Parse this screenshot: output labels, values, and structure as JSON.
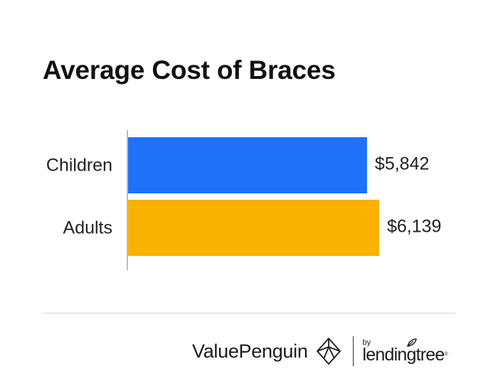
{
  "chart_data": {
    "type": "bar",
    "orientation": "horizontal",
    "title": "Average Cost of Braces",
    "categories": [
      "Children",
      "Adults"
    ],
    "values": [
      5842,
      6139
    ],
    "value_labels": [
      "$5,842",
      "$6,139"
    ],
    "colors": [
      "#2170f8",
      "#fab200"
    ],
    "xlim": [
      0,
      6139
    ],
    "xlabel": "",
    "ylabel": "",
    "grid": false,
    "legend": "none"
  },
  "footer": {
    "brand": "ValuePenguin",
    "by": "by",
    "partner": "lendingtree",
    "registered": "®"
  },
  "colors": {
    "axis": "#bdbdbd",
    "divider": "#d4d4d4",
    "text": "#111111"
  },
  "icons": {
    "brand": "penguin-geometric-icon",
    "partner": "leaf-icon"
  }
}
